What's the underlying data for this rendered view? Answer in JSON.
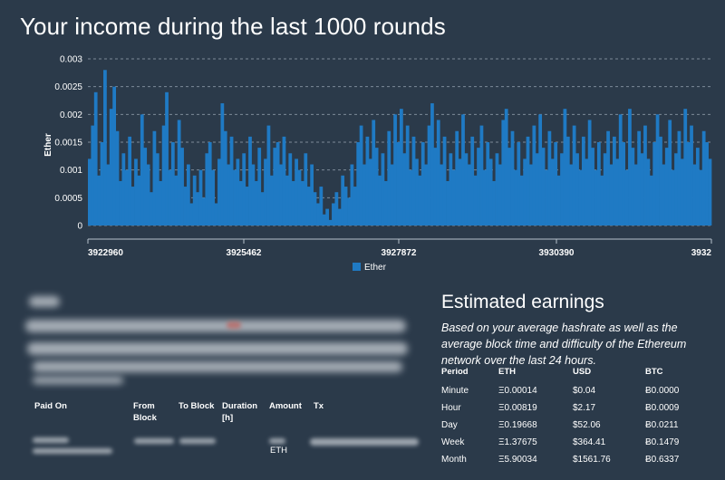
{
  "page_title": "Your income during the last 1000 rounds",
  "chart_data": {
    "type": "bar",
    "ylabel": "Ether",
    "ylim": [
      0,
      0.003
    ],
    "y_ticks": [
      "0",
      "0.0005",
      "0.001",
      "0.0015",
      "0.002",
      "0.0025",
      "0.003"
    ],
    "x_tick_labels": [
      "3922960",
      "3925462",
      "3927872",
      "3930390",
      "3932"
    ],
    "legend": [
      "Ether"
    ],
    "grid": true,
    "series_color": "#1f7ac4",
    "values": [
      0.0012,
      0.0018,
      0.0024,
      0.0009,
      0.0015,
      0.0028,
      0.0011,
      0.0021,
      0.0025,
      0.0017,
      0.0008,
      0.0013,
      0.001,
      0.0016,
      0.0007,
      0.0012,
      0.0009,
      0.002,
      0.0014,
      0.0011,
      0.0006,
      0.0017,
      0.0013,
      0.0008,
      0.0018,
      0.0024,
      0.001,
      0.0015,
      0.0009,
      0.0019,
      0.0014,
      0.0007,
      0.0011,
      0.0004,
      0.0009,
      0.0006,
      0.001,
      0.0005,
      0.0013,
      0.0015,
      0.001,
      0.0004,
      0.0012,
      0.0022,
      0.0017,
      0.0011,
      0.0016,
      0.001,
      0.0012,
      0.0008,
      0.0013,
      0.0007,
      0.0016,
      0.0011,
      0.0008,
      0.0014,
      0.0006,
      0.0012,
      0.0018,
      0.0009,
      0.0014,
      0.0015,
      0.0011,
      0.0016,
      0.0009,
      0.0013,
      0.0008,
      0.0012,
      0.001,
      0.0008,
      0.0013,
      0.0007,
      0.0011,
      0.0006,
      0.0004,
      0.0007,
      0.0002,
      0.0003,
      0.0001,
      0.0004,
      0.0006,
      0.0003,
      0.0009,
      0.0007,
      0.0005,
      0.0011,
      0.0007,
      0.0015,
      0.0018,
      0.0011,
      0.0016,
      0.0012,
      0.0019,
      0.0014,
      0.0009,
      0.0013,
      0.0008,
      0.0017,
      0.0011,
      0.002,
      0.0015,
      0.0021,
      0.0013,
      0.0018,
      0.001,
      0.0016,
      0.0012,
      0.0009,
      0.0015,
      0.0011,
      0.0018,
      0.0022,
      0.0014,
      0.0019,
      0.0011,
      0.0016,
      0.0008,
      0.0013,
      0.001,
      0.0017,
      0.0012,
      0.002,
      0.0013,
      0.0011,
      0.0016,
      0.0009,
      0.0014,
      0.0018,
      0.001,
      0.0015,
      0.0012,
      0.0008,
      0.0013,
      0.0011,
      0.0019,
      0.0021,
      0.0014,
      0.0017,
      0.001,
      0.0015,
      0.0009,
      0.0012,
      0.0016,
      0.0011,
      0.0018,
      0.0013,
      0.002,
      0.0014,
      0.001,
      0.0017,
      0.0012,
      0.0015,
      0.0009,
      0.0013,
      0.0021,
      0.0016,
      0.0011,
      0.0018,
      0.0013,
      0.001,
      0.0016,
      0.0012,
      0.0019,
      0.0014,
      0.001,
      0.0015,
      0.0009,
      0.0013,
      0.0017,
      0.0011,
      0.0016,
      0.0012,
      0.002,
      0.0015,
      0.001,
      0.0021,
      0.0014,
      0.0011,
      0.0017,
      0.0013,
      0.0018,
      0.0012,
      0.0009,
      0.0015,
      0.002,
      0.0016,
      0.0011,
      0.0014,
      0.0019,
      0.001,
      0.0013,
      0.0017,
      0.0012,
      0.0021,
      0.0015,
      0.0018,
      0.0011,
      0.0014,
      0.001,
      0.0017,
      0.0015,
      0.0012
    ]
  },
  "payouts": {
    "headers": [
      {
        "line1": "Paid On",
        "line2": ""
      },
      {
        "line1": "From",
        "line2": "Block"
      },
      {
        "line1": "To Block",
        "line2": ""
      },
      {
        "line1": "Duration",
        "line2": "[h]"
      },
      {
        "line1": "Amount",
        "line2": ""
      },
      {
        "line1": "Tx",
        "line2": ""
      }
    ],
    "amount_unit": "ETH"
  },
  "estimated": {
    "title": "Estimated earnings",
    "description": "Based on your average hashrate as well as the average block time and difficulty of the Ethereum network over the last 24 hours.",
    "columns": [
      "Period",
      "ETH",
      "USD",
      "BTC"
    ],
    "rows": [
      {
        "period": "Minute",
        "eth": "Ξ0.00014",
        "usd": "$0.04",
        "btc": "Ƀ0.0000"
      },
      {
        "period": "Hour",
        "eth": "Ξ0.00819",
        "usd": "$2.17",
        "btc": "Ƀ0.0009"
      },
      {
        "period": "Day",
        "eth": "Ξ0.19668",
        "usd": "$52.06",
        "btc": "Ƀ0.0211"
      },
      {
        "period": "Week",
        "eth": "Ξ1.37675",
        "usd": "$364.41",
        "btc": "Ƀ0.1479"
      },
      {
        "period": "Month",
        "eth": "Ξ5.90034",
        "usd": "$1561.76",
        "btc": "Ƀ0.6337"
      }
    ]
  }
}
